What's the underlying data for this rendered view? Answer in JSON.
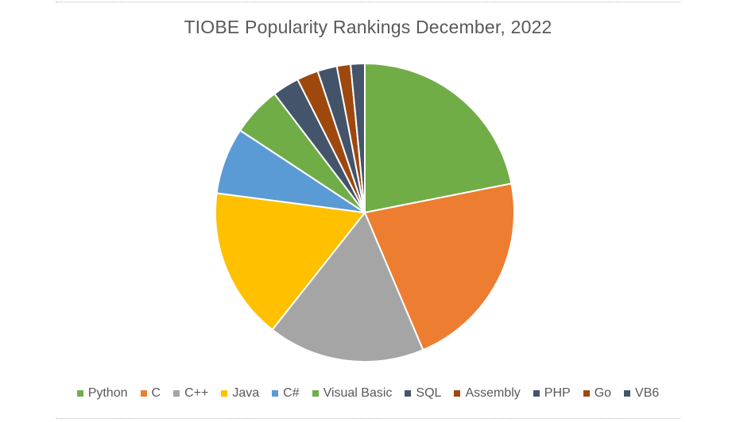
{
  "chart_data": {
    "type": "pie",
    "title": "TIOBE Popularity Rankings December, 2022",
    "categories": [
      "Python",
      "C",
      "C++",
      "Java",
      "C#",
      "Visual Basic",
      "SQL",
      "Assembly",
      "PHP",
      "Go",
      "VB6"
    ],
    "values": [
      16.66,
      16.56,
      12.94,
      12.53,
      5.49,
      4.09,
      2.21,
      1.77,
      1.6,
      1.13,
      1.16
    ],
    "colors": [
      "#70ad47",
      "#ed7d31",
      "#a5a5a5",
      "#ffc000",
      "#5b9bd5",
      "#70ad47",
      "#44546a",
      "#9e480e",
      "#43536a",
      "#9e480e",
      "#44546a"
    ],
    "legend_position": "bottom",
    "start_angle": "top",
    "direction": "clockwise"
  }
}
